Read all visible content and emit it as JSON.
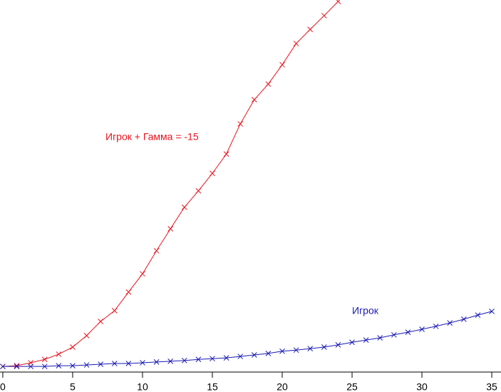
{
  "chart_data": {
    "type": "line",
    "x": [
      0,
      1,
      2,
      3,
      4,
      5,
      6,
      7,
      8,
      9,
      10,
      11,
      12,
      13,
      14,
      15,
      16,
      17,
      18,
      19,
      20,
      21,
      22,
      23,
      24,
      25,
      26,
      27,
      28,
      29,
      30,
      31,
      32,
      33,
      34,
      35
    ],
    "series": [
      {
        "name": "Игрок + Гамма = -15",
        "color": "#e8141e",
        "values": [
          1.5,
          1.7,
          2.5,
          3.4,
          4.8,
          6.7,
          9.8,
          13.6,
          16.5,
          21.5,
          26.4,
          32.6,
          38.5,
          44.3,
          48.7,
          53.4,
          58.6,
          66.7,
          73.2,
          77.4,
          82.6,
          88.3,
          92.1,
          95.8,
          99.6,
          null,
          null,
          null,
          null,
          null,
          null,
          null,
          null,
          null,
          null,
          null
        ]
      },
      {
        "name": "Игрок",
        "color": "#1a1ab4",
        "values": [
          1.5,
          1.5,
          1.5,
          1.5,
          1.7,
          1.7,
          1.9,
          2.1,
          2.3,
          2.3,
          2.5,
          2.7,
          2.9,
          3.1,
          3.4,
          3.6,
          3.8,
          4.2,
          4.6,
          5.0,
          5.6,
          5.9,
          6.3,
          6.7,
          7.3,
          8.0,
          8.6,
          9.2,
          10.0,
          10.7,
          11.5,
          12.3,
          13.2,
          14.2,
          15.3,
          16.3
        ]
      }
    ],
    "xlim": [
      -0.2,
      35.66
    ],
    "xticks": [
      0,
      5,
      10,
      15,
      20,
      25,
      30,
      35
    ],
    "ylim": [
      0,
      100
    ]
  }
}
